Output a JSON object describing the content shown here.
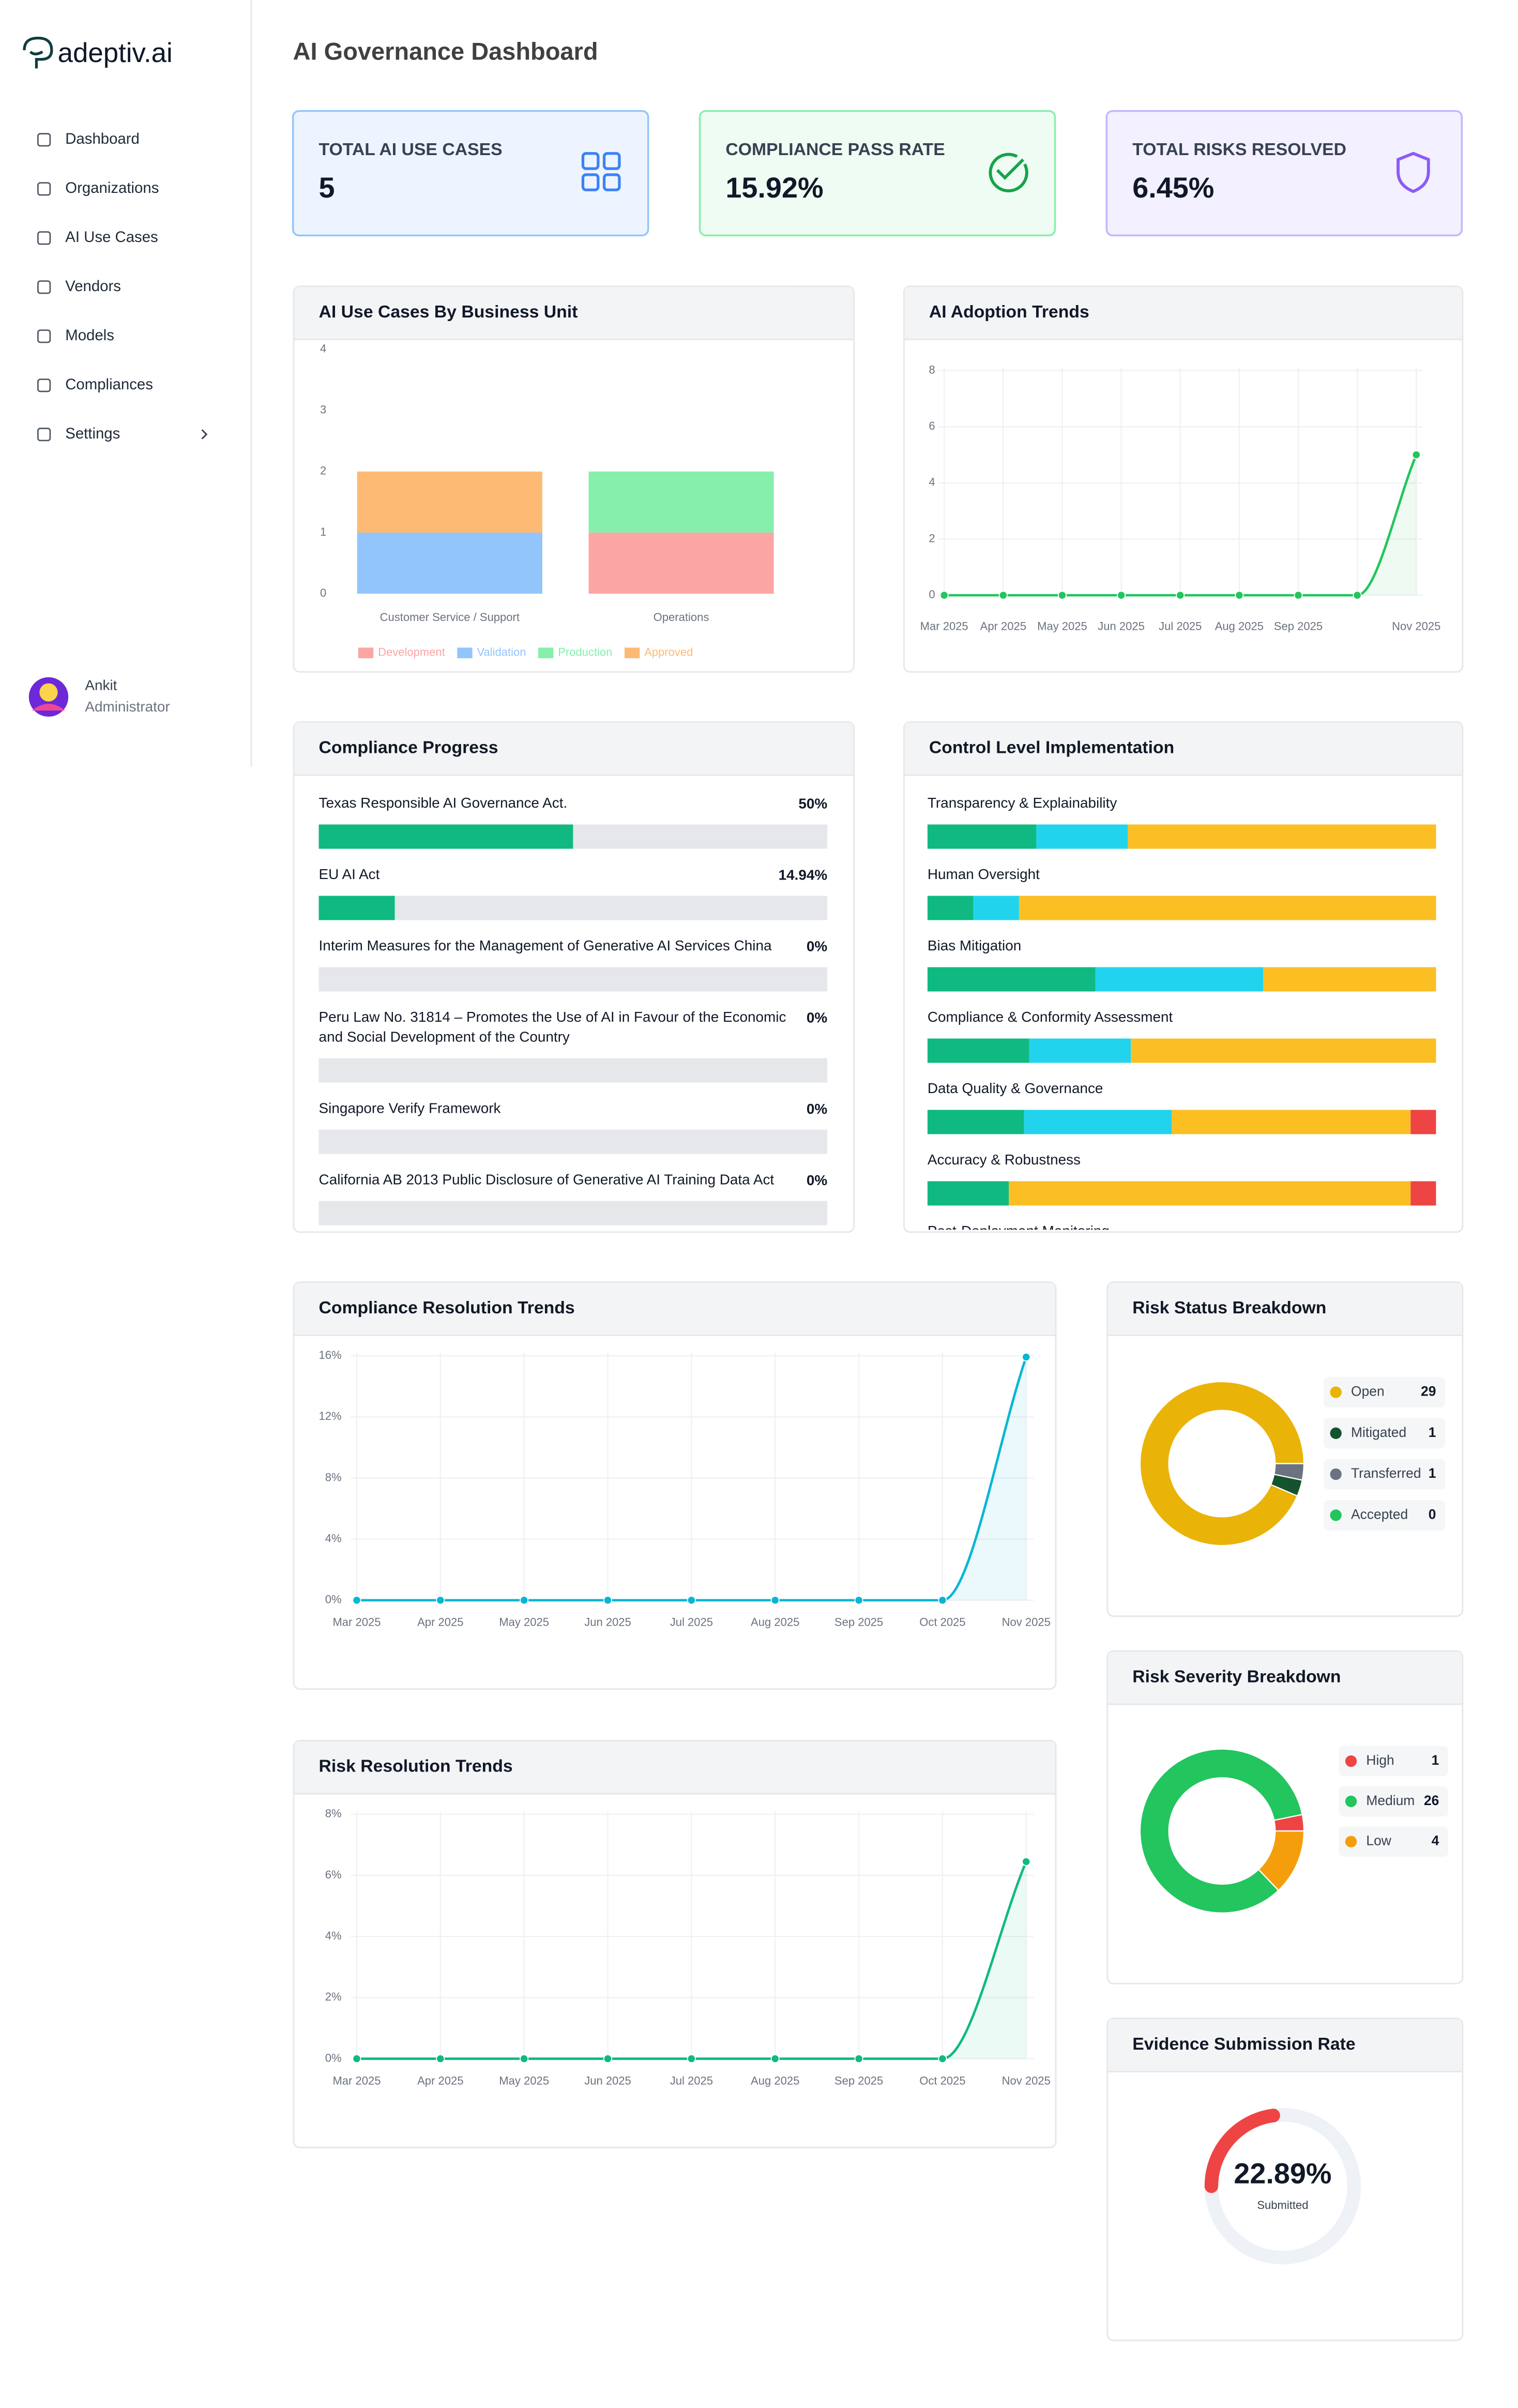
{
  "sidebar": {
    "brand": "adeptiv.ai",
    "menu": [
      "Dashboard",
      "Organizations",
      "AI Use Cases",
      "Vendors",
      "Models",
      "Compliances",
      "Settings"
    ],
    "user": {
      "name": "Ankit",
      "role": "Administrator"
    }
  },
  "header": {
    "title": "AI Governance Dashboard"
  },
  "kpis": [
    {
      "label": "TOTAL AI USE CASES",
      "value": "5"
    },
    {
      "label": "COMPLIANCE PASS RATE",
      "value": "15.92%"
    },
    {
      "label": "TOTAL RISKS RESOLVED",
      "value": "6.45%"
    }
  ],
  "chart_data": [
    {
      "type": "bar",
      "stacked": true,
      "title": "AI Use Cases By Business Unit",
      "categories": [
        "Customer Service / Support",
        "Operations"
      ],
      "series": [
        {
          "name": "Development",
          "color": "#fca5a5",
          "values": [
            0,
            1
          ]
        },
        {
          "name": "Validation",
          "color": "#93c5fd",
          "values": [
            1,
            0
          ]
        },
        {
          "name": "Production",
          "color": "#86efac",
          "values": [
            0,
            1
          ]
        },
        {
          "name": "Approved",
          "color": "#fdba74",
          "values": [
            1,
            0
          ]
        }
      ],
      "ylim": [
        0,
        4
      ],
      "yticks": [
        0,
        1,
        2,
        3,
        4
      ]
    },
    {
      "type": "line",
      "title": "AI Adoption Trends",
      "categories": [
        "Mar 2025",
        "Apr 2025",
        "May 2025",
        "Jun 2025",
        "Jul 2025",
        "Aug 2025",
        "Sep 2025",
        null,
        "Nov 2025"
      ],
      "values": [
        0,
        0,
        0,
        0,
        0,
        0,
        0,
        0,
        5
      ],
      "color": "#22c55e",
      "ylim": [
        0,
        8
      ],
      "yticks": [
        0,
        2,
        4,
        6,
        8
      ],
      "grid": true
    },
    {
      "type": "progress",
      "title": "Compliance Progress",
      "categories": [
        "Texas Responsible AI Governance Act.",
        "EU AI Act",
        "Interim Measures for the Management of Generative AI Services China",
        "Peru Law No. 31814 – Promotes the Use of AI in Favour of the Economic and Social Development of the Country",
        "Singapore Verify Framework",
        "California AB 2013 Public Disclosure of Generative AI Training Data Act"
      ],
      "values": [
        50,
        14.94,
        0,
        0,
        0,
        0
      ],
      "value_labels": [
        "50%",
        "14.94%",
        "0%",
        "0%",
        "0%",
        "0%"
      ],
      "color": "#10b981",
      "xlim": [
        0,
        100
      ]
    },
    {
      "type": "hbar",
      "stacked": true,
      "title": "Control Level Implementation",
      "categories": [
        "Transparency & Explainability",
        "Human Oversight",
        "Bias Mitigation",
        "Compliance & Conformity Assessment",
        "Data Quality & Governance",
        "Accuracy & Robustness",
        "Post-Deployment Monitoring"
      ],
      "series": [
        {
          "color": "#10b981",
          "values": [
            21.4,
            9,
            33,
            20,
            19,
            16,
            null
          ]
        },
        {
          "color": "#22d3ee",
          "values": [
            18,
            9,
            33,
            20,
            29,
            0,
            null
          ]
        },
        {
          "color": "#fbbf24",
          "values": [
            60.6,
            82,
            34,
            60,
            47,
            79,
            null
          ]
        },
        {
          "color": "#ef4444",
          "values": [
            0,
            0,
            0,
            0,
            5,
            5,
            null
          ]
        }
      ],
      "xlim": [
        0,
        100
      ]
    },
    {
      "type": "line",
      "title": "Compliance Resolution Trends",
      "categories": [
        "Mar 2025",
        "Apr 2025",
        "May 2025",
        "Jun 2025",
        "Jul 2025",
        "Aug 2025",
        "Sep 2025",
        "Oct 2025",
        "Nov 2025"
      ],
      "values": [
        0,
        0,
        0,
        0,
        0,
        0,
        0,
        0,
        15.92
      ],
      "color": "#06b6d4",
      "ylim": [
        0,
        16
      ],
      "yticks": [
        {
          "value": 0,
          "label": "0%"
        },
        {
          "value": 4,
          "label": "4%"
        },
        {
          "value": 8,
          "label": "8%"
        },
        {
          "value": 12,
          "label": "12%"
        },
        {
          "value": 16,
          "label": "16%"
        }
      ],
      "grid": true
    },
    {
      "type": "donut",
      "title": "Risk Status Breakdown",
      "categories": [
        "Open",
        "Mitigated",
        "Transferred",
        "Accepted"
      ],
      "values": [
        29,
        1,
        1,
        0
      ],
      "colors": [
        "#eab308",
        "#14532d",
        "#6b7280",
        "#22c55e"
      ]
    },
    {
      "type": "line",
      "title": "Risk Resolution Trends",
      "categories": [
        "Mar 2025",
        "Apr 2025",
        "May 2025",
        "Jun 2025",
        "Jul 2025",
        "Aug 2025",
        "Sep 2025",
        "Oct 2025",
        "Nov 2025"
      ],
      "values": [
        0,
        0,
        0,
        0,
        0,
        0,
        0,
        0,
        6.45
      ],
      "color": "#10b981",
      "ylim": [
        0,
        8
      ],
      "yticks": [
        {
          "value": 0,
          "label": "0%"
        },
        {
          "value": 2,
          "label": "2%"
        },
        {
          "value": 4,
          "label": "4%"
        },
        {
          "value": 6,
          "label": "6%"
        },
        {
          "value": 8,
          "label": "8%"
        }
      ],
      "grid": true
    },
    {
      "type": "donut",
      "title": "Risk Severity Breakdown",
      "categories": [
        "High",
        "Medium",
        "Low"
      ],
      "values": [
        1,
        26,
        4
      ],
      "colors": [
        "#ef4444",
        "#22c55e",
        "#f59e0b"
      ]
    },
    {
      "type": "gauge",
      "title": "Evidence Submission Rate",
      "value": 22.89,
      "value_label": "22.89%",
      "label": "Submitted",
      "color": "#ef4444",
      "ylim": [
        0,
        100
      ]
    }
  ]
}
